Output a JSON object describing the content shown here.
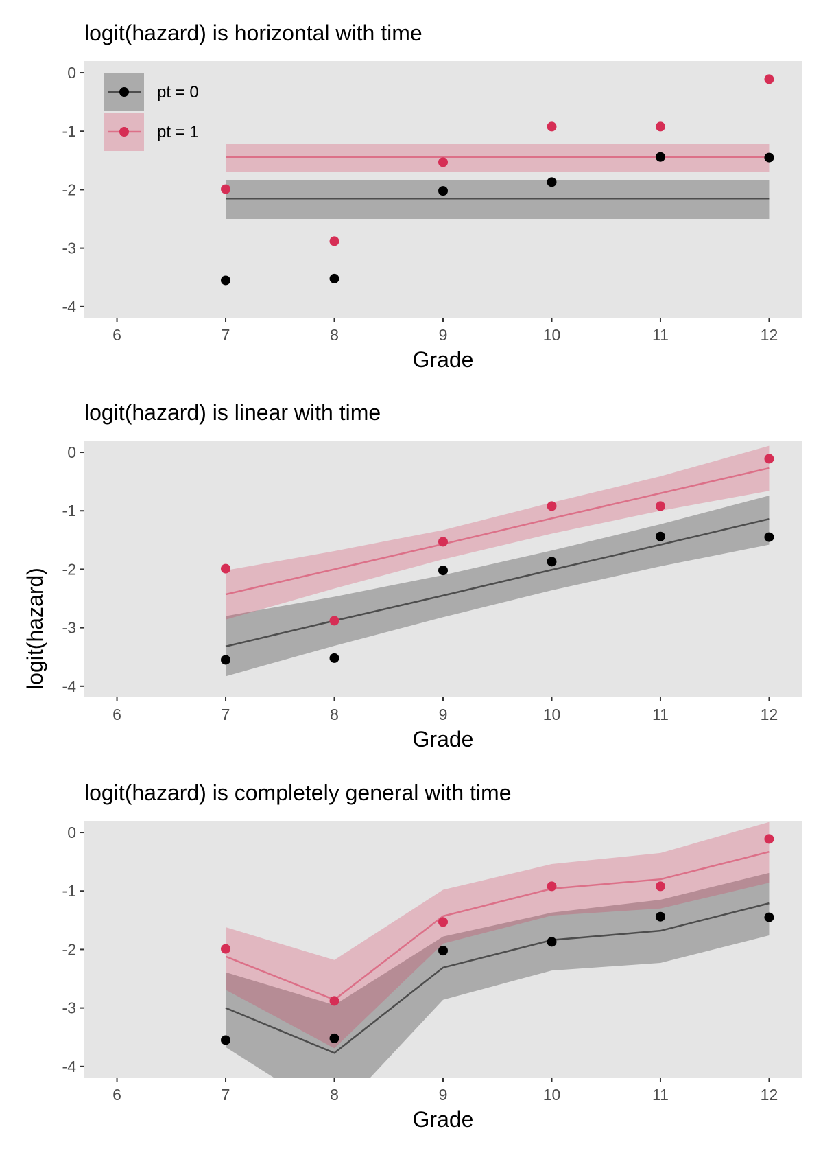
{
  "colors": {
    "pt0_point": "#000000",
    "pt0_line": "#4d4d4d",
    "pt0_ribbon": "#000000",
    "pt1_point": "#d62e55",
    "pt1_line": "#dc7088",
    "pt1_ribbon": "#d93154",
    "panel_bg": "#e5e5e5"
  },
  "legend": {
    "items": [
      {
        "label": "pt = 0",
        "group": "pt0"
      },
      {
        "label": "pt = 1",
        "group": "pt1"
      }
    ]
  },
  "y_axis_label": "logit(hazard)",
  "chart_data": [
    {
      "type": "line",
      "title": "logit(hazard) is horizontal with time",
      "xlabel": "Grade",
      "ylabel": "logit(hazard)",
      "xlim": [
        5.7,
        12.3
      ],
      "ylim": [
        -4.19,
        0.2
      ],
      "xticks": [
        "6",
        "7",
        "8",
        "9",
        "10",
        "11",
        "12"
      ],
      "yticks": [
        "0",
        "-1",
        "-2",
        "-3",
        "-4"
      ],
      "grid": false,
      "legend_placement": "top-left",
      "x": [
        7,
        8,
        9,
        10,
        11,
        12
      ],
      "series": [
        {
          "name": "pt = 0",
          "group": "pt0",
          "points": [
            -3.55,
            -3.52,
            -2.02,
            -1.87,
            -1.44,
            -1.45
          ],
          "fit": [
            -2.15,
            -2.15,
            -2.15,
            -2.15,
            -2.15,
            -2.15
          ],
          "lower": [
            -2.5,
            -2.5,
            -2.5,
            -2.5,
            -2.5,
            -2.5
          ],
          "upper": [
            -1.83,
            -1.83,
            -1.83,
            -1.83,
            -1.83,
            -1.83
          ]
        },
        {
          "name": "pt = 1",
          "group": "pt1",
          "points": [
            -1.99,
            -2.88,
            -1.53,
            -0.92,
            -0.92,
            -0.11
          ],
          "fit": [
            -1.44,
            -1.44,
            -1.44,
            -1.44,
            -1.44,
            -1.44
          ],
          "lower": [
            -1.7,
            -1.7,
            -1.7,
            -1.7,
            -1.7,
            -1.7
          ],
          "upper": [
            -1.22,
            -1.22,
            -1.22,
            -1.22,
            -1.22,
            -1.22
          ]
        }
      ]
    },
    {
      "type": "line",
      "title": "logit(hazard) is linear with time",
      "xlabel": "Grade",
      "ylabel": "logit(hazard)",
      "xlim": [
        5.7,
        12.3
      ],
      "ylim": [
        -4.19,
        0.2
      ],
      "xticks": [
        "6",
        "7",
        "8",
        "9",
        "10",
        "11",
        "12"
      ],
      "yticks": [
        "0",
        "-1",
        "-2",
        "-3",
        "-4"
      ],
      "grid": false,
      "x": [
        7,
        8,
        9,
        10,
        11,
        12
      ],
      "series": [
        {
          "name": "pt = 0",
          "group": "pt0",
          "points": [
            -3.55,
            -3.52,
            -2.02,
            -1.87,
            -1.44,
            -1.45
          ],
          "fit": [
            -3.32,
            -2.88,
            -2.45,
            -2.01,
            -1.58,
            -1.14
          ],
          "lower": [
            -3.83,
            -3.31,
            -2.82,
            -2.36,
            -1.95,
            -1.58
          ],
          "upper": [
            -2.8,
            -2.47,
            -2.1,
            -1.68,
            -1.23,
            -0.74
          ]
        },
        {
          "name": "pt = 1",
          "group": "pt1",
          "points": [
            -1.99,
            -2.88,
            -1.53,
            -0.92,
            -0.92,
            -0.11
          ],
          "fit": [
            -2.43,
            -2.0,
            -1.57,
            -1.13,
            -0.7,
            -0.27
          ],
          "lower": [
            -2.86,
            -2.33,
            -1.83,
            -1.39,
            -1.0,
            -0.66
          ],
          "upper": [
            -2.02,
            -1.69,
            -1.33,
            -0.86,
            -0.41,
            0.11
          ]
        }
      ]
    },
    {
      "type": "line",
      "title": "logit(hazard) is completely general with time",
      "xlabel": "Grade",
      "ylabel": "logit(hazard)",
      "xlim": [
        5.7,
        12.3
      ],
      "ylim": [
        -4.19,
        0.2
      ],
      "xticks": [
        "6",
        "7",
        "8",
        "9",
        "10",
        "11",
        "12"
      ],
      "yticks": [
        "0",
        "-1",
        "-2",
        "-3",
        "-4"
      ],
      "grid": false,
      "x": [
        7,
        8,
        9,
        10,
        11,
        12
      ],
      "series": [
        {
          "name": "pt = 0",
          "group": "pt0",
          "points": [
            -3.55,
            -3.52,
            -2.02,
            -1.87,
            -1.44,
            -1.45
          ],
          "fit": [
            -3.0,
            -3.77,
            -2.31,
            -1.84,
            -1.68,
            -1.21
          ],
          "lower": [
            -3.67,
            -4.85,
            -2.86,
            -2.36,
            -2.23,
            -1.76
          ],
          "upper": [
            -2.39,
            -2.95,
            -1.78,
            -1.37,
            -1.15,
            -0.69
          ]
        },
        {
          "name": "pt = 1",
          "group": "pt1",
          "points": [
            -1.99,
            -2.88,
            -1.53,
            -0.92,
            -0.92,
            -0.11
          ],
          "fit": [
            -2.12,
            -2.86,
            -1.43,
            -0.96,
            -0.8,
            -0.33
          ],
          "lower": [
            -2.69,
            -3.69,
            -1.9,
            -1.42,
            -1.3,
            -0.86
          ],
          "upper": [
            -1.62,
            -2.18,
            -0.98,
            -0.54,
            -0.35,
            0.18
          ]
        }
      ]
    }
  ]
}
